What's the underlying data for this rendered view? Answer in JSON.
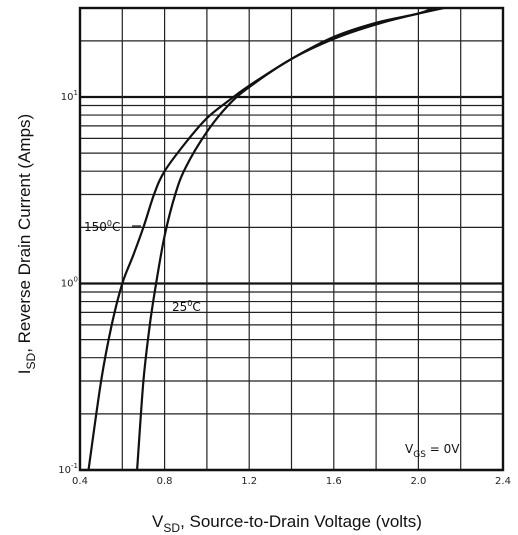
{
  "chart_data": {
    "type": "line",
    "title": "",
    "xlabel": "V_SD, Source-to-Drain Voltage (volts)",
    "xlabel_main": "V",
    "xlabel_sub": "SD",
    "xlabel_rest": ", Source-to-Drain Voltage (volts)",
    "ylabel": "I_SD, Reverse Drain Current (Amps)",
    "ylabel_main": "I",
    "ylabel_sub": "SD",
    "ylabel_rest": ", Reverse Drain Current (Amps)",
    "xlim": [
      0.4,
      2.4
    ],
    "ylim": [
      0.1,
      30
    ],
    "yscale": "log",
    "grid": true,
    "xticks": [
      0.4,
      0.8,
      1.2,
      1.6,
      2.0,
      2.4
    ],
    "xtick_labels": [
      "0.4",
      "0.8",
      "1.2",
      "1.6",
      "2.0",
      "2.4"
    ],
    "yticks": [
      {
        "value": 0.1,
        "base": "10",
        "exp": "-1"
      },
      {
        "value": 1,
        "base": "10",
        "exp": "0"
      },
      {
        "value": 10,
        "base": "10",
        "exp": "1"
      }
    ],
    "series": [
      {
        "name": "150°C",
        "label_main": "150",
        "label_sup": "0",
        "label_end": "C",
        "x": [
          0.44,
          0.5,
          0.55,
          0.6,
          0.65,
          0.7,
          0.75,
          0.8,
          0.9,
          1.0,
          1.1,
          1.2,
          1.4,
          1.6,
          1.8,
          2.0,
          2.07
        ],
        "y": [
          0.1,
          0.3,
          0.6,
          1.0,
          1.4,
          2.0,
          3.0,
          4.0,
          5.7,
          7.7,
          9.5,
          11.5,
          16.0,
          21.0,
          25.0,
          28.0,
          30.0
        ]
      },
      {
        "name": "25°C",
        "label_main": "25",
        "label_sup": "0",
        "label_end": "C",
        "x": [
          0.67,
          0.7,
          0.73,
          0.76,
          0.8,
          0.85,
          0.9,
          1.0,
          1.1,
          1.2,
          1.4,
          1.6,
          1.8,
          2.0,
          2.12
        ],
        "y": [
          0.1,
          0.3,
          0.6,
          1.0,
          1.8,
          3.0,
          4.2,
          6.5,
          9.0,
          11.3,
          16.0,
          20.5,
          24.5,
          28.0,
          30.0
        ]
      }
    ],
    "annotations": {
      "condition_main": "V",
      "condition_sub": "GS",
      "condition_rest": " = 0V"
    }
  }
}
